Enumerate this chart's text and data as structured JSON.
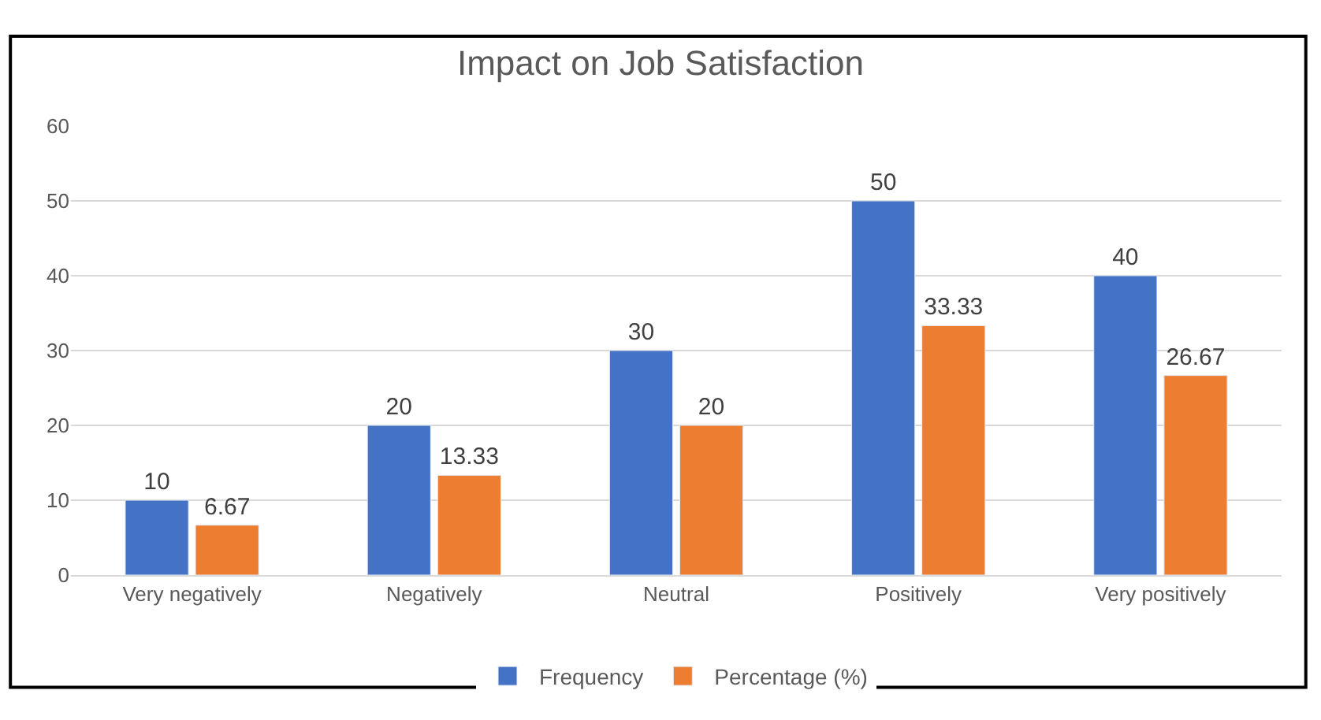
{
  "chart_data": {
    "type": "bar",
    "title": "Impact on Job Satisfaction",
    "categories": [
      "Very negatively",
      "Negatively",
      "Neutral",
      "Positively",
      "Very positively"
    ],
    "series": [
      {
        "name": "Frequency",
        "color": "#4472c4",
        "values": [
          10,
          20,
          30,
          50,
          40
        ]
      },
      {
        "name": "Percentage (%)",
        "color": "#ed7d31",
        "values": [
          6.67,
          13.33,
          20,
          33.33,
          26.67
        ]
      }
    ],
    "ylim": [
      0,
      60
    ],
    "yticks": [
      0,
      10,
      20,
      30,
      40,
      50,
      60
    ],
    "grid": "y",
    "legend": "bottom",
    "data_labels": true
  }
}
